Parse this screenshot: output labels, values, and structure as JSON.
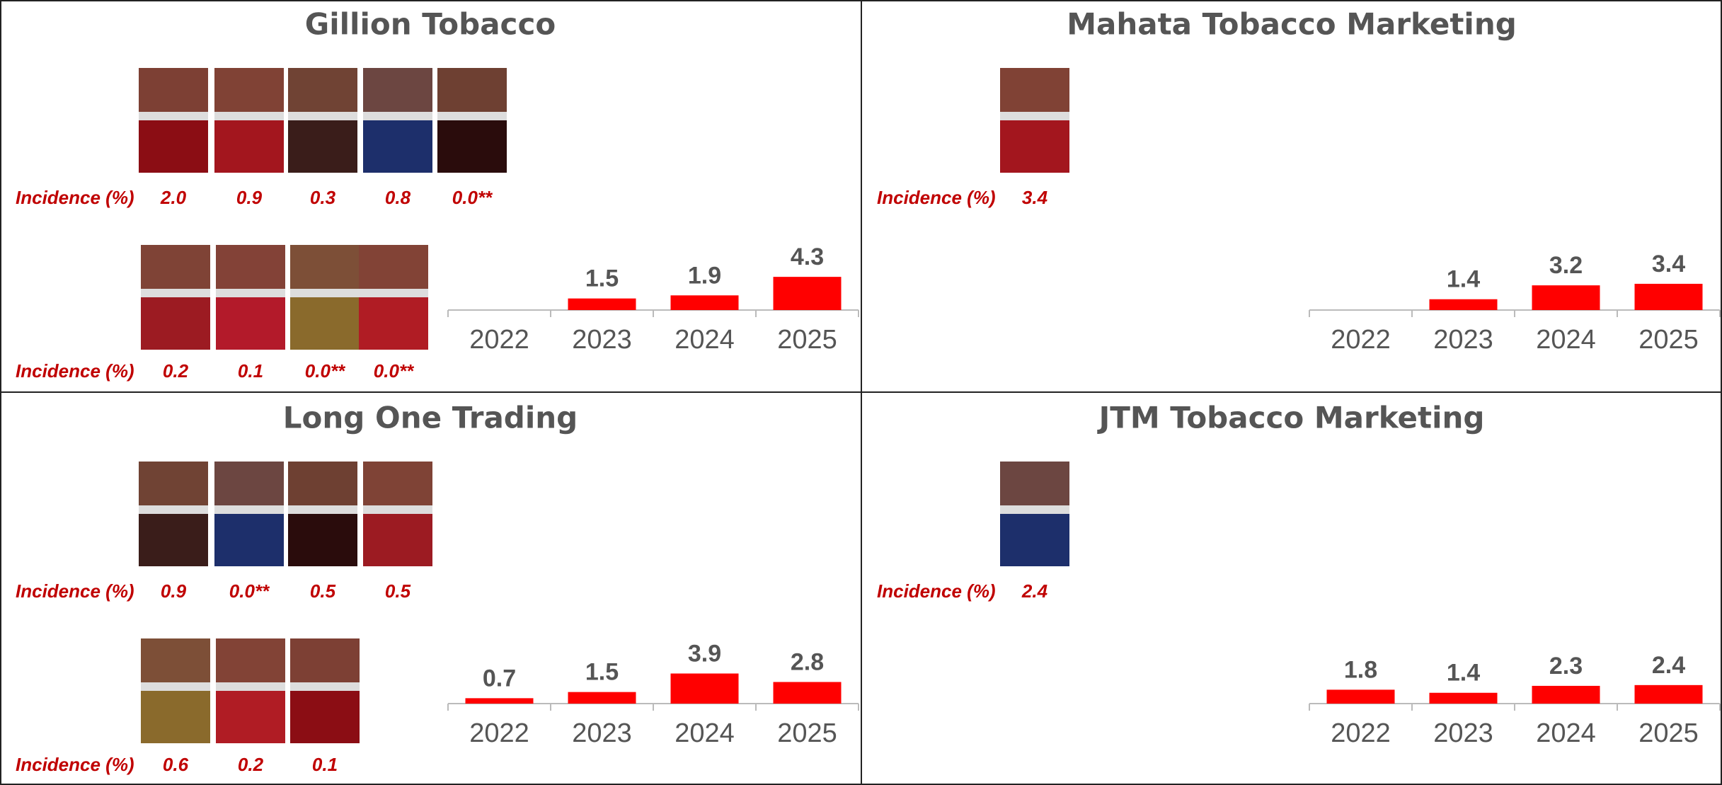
{
  "chart_data": [
    {
      "type": "bar",
      "title": "Gillion Tobacco",
      "incidence": [
        {
          "label": "Incidence (%)",
          "values": [
            "2.0",
            "0.9",
            "0.3",
            "0.8",
            "0.0**"
          ]
        },
        {
          "label": "Incidence (%)",
          "values": [
            "0.2",
            "0.1",
            "0.0**",
            "0.0**"
          ]
        }
      ],
      "categories": [
        "2022",
        "2023",
        "2024",
        "2025"
      ],
      "values": [
        null,
        1.5,
        1.9,
        4.3
      ],
      "color": "#ff0000",
      "ylim": [
        0,
        20
      ]
    },
    {
      "type": "bar",
      "title": "Mahata Tobacco Marketing",
      "incidence": [
        {
          "label": "Incidence (%)",
          "values": [
            "3.4"
          ]
        }
      ],
      "categories": [
        "2022",
        "2023",
        "2024",
        "2025"
      ],
      "values": [
        null,
        1.4,
        3.2,
        3.4
      ],
      "color": "#ff0000",
      "ylim": [
        0,
        20
      ]
    },
    {
      "type": "bar",
      "title": "Long One Trading",
      "incidence": [
        {
          "label": "Incidence (%)",
          "values": [
            "0.9",
            "0.0**",
            "0.5",
            "0.5"
          ]
        },
        {
          "label": "Incidence (%)",
          "values": [
            "0.6",
            "0.2",
            "0.1"
          ]
        }
      ],
      "categories": [
        "2022",
        "2023",
        "2024",
        "2025"
      ],
      "values": [
        0.7,
        1.5,
        3.9,
        2.8
      ],
      "color": "#ff0000",
      "ylim": [
        0,
        20
      ]
    },
    {
      "type": "bar",
      "title": "JTM Tobacco Marketing",
      "incidence": [
        {
          "label": "Incidence (%)",
          "values": [
            "2.4"
          ]
        }
      ],
      "categories": [
        "2022",
        "2023",
        "2024",
        "2025"
      ],
      "values": [
        1.8,
        1.4,
        2.3,
        2.4
      ],
      "color": "#ff0000",
      "ylim": [
        0,
        20
      ]
    }
  ]
}
